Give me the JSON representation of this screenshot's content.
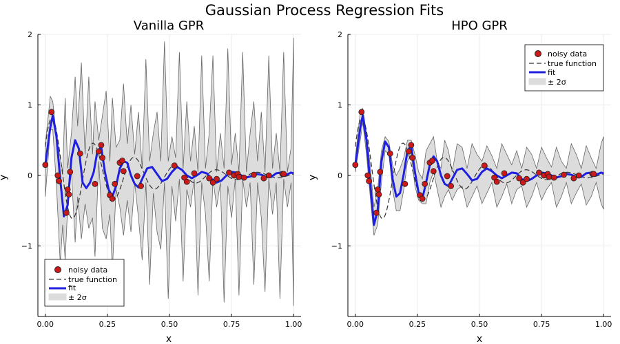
{
  "figure": {
    "title": "Gaussian Process Regression Fits"
  },
  "legend": {
    "noisy": "noisy data",
    "true": "true function",
    "fit": "fit",
    "band": "± 2σ"
  },
  "colors": {
    "data_point": "#cc1a1a",
    "data_edge": "#222222",
    "true_line": "#333333",
    "fit_line": "#1f1fe0",
    "band_fill": "#dcdcdc",
    "band_edge": "#666666"
  },
  "chart_data": [
    {
      "type": "line",
      "title": "Vanilla GPR",
      "xlabel": "x",
      "ylabel": "y",
      "xlim": [
        -0.03,
        1.03
      ],
      "ylim": [
        -2.0,
        2.0
      ],
      "xticks": [
        {
          "value": 0.0,
          "label": "0.00"
        },
        {
          "value": 0.25,
          "label": "0.25"
        },
        {
          "value": 0.5,
          "label": "0.50"
        },
        {
          "value": 0.75,
          "label": "0.75"
        },
        {
          "value": 1.0,
          "label": "1.00"
        }
      ],
      "yticks": [
        {
          "value": -1,
          "label": "−1"
        },
        {
          "value": 0,
          "label": "0"
        },
        {
          "value": 1,
          "label": "1"
        },
        {
          "value": 2,
          "label": "2"
        }
      ],
      "grid": true,
      "legend_position": "bottom-left",
      "true_function": "0.9*exp(-3.5x)*cos(38x-1.1)",
      "noisy_data": {
        "x": [
          0.0,
          0.025,
          0.05,
          0.055,
          0.085,
          0.09,
          0.095,
          0.1,
          0.14,
          0.2,
          0.215,
          0.225,
          0.23,
          0.26,
          0.27,
          0.28,
          0.3,
          0.31,
          0.315,
          0.37,
          0.385,
          0.52,
          0.56,
          0.57,
          0.6,
          0.66,
          0.675,
          0.69,
          0.74,
          0.76,
          0.775,
          0.78,
          0.8,
          0.84,
          0.88,
          0.9,
          0.955,
          0.96
        ],
        "y": [
          0.15,
          0.9,
          0.0,
          -0.08,
          -0.53,
          -0.2,
          -0.27,
          0.05,
          0.31,
          -0.12,
          0.34,
          0.43,
          0.25,
          -0.28,
          -0.33,
          -0.12,
          0.18,
          0.21,
          0.06,
          -0.01,
          -0.15,
          0.14,
          -0.03,
          -0.09,
          0.03,
          -0.04,
          -0.1,
          -0.05,
          0.04,
          0.0,
          0.02,
          -0.02,
          -0.03,
          0.01,
          -0.04,
          0.0,
          0.02,
          0.02
        ]
      },
      "fit": {
        "x": [
          0.0,
          0.02,
          0.03,
          0.045,
          0.06,
          0.075,
          0.09,
          0.105,
          0.12,
          0.135,
          0.15,
          0.165,
          0.18,
          0.195,
          0.21,
          0.225,
          0.24,
          0.255,
          0.27,
          0.285,
          0.3,
          0.315,
          0.33,
          0.345,
          0.36,
          0.375,
          0.39,
          0.41,
          0.43,
          0.45,
          0.47,
          0.49,
          0.51,
          0.53,
          0.55,
          0.57,
          0.59,
          0.61,
          0.63,
          0.65,
          0.67,
          0.69,
          0.71,
          0.73,
          0.75,
          0.77,
          0.79,
          0.81,
          0.83,
          0.85,
          0.87,
          0.89,
          0.91,
          0.93,
          0.95,
          0.97,
          0.99,
          1.0
        ],
        "y": [
          0.15,
          0.68,
          0.85,
          0.55,
          -0.05,
          -0.58,
          -0.42,
          0.25,
          0.5,
          0.38,
          -0.1,
          -0.18,
          -0.1,
          0.05,
          0.35,
          0.4,
          0.05,
          -0.2,
          -0.3,
          -0.15,
          0.1,
          0.2,
          0.18,
          0.0,
          -0.12,
          -0.17,
          -0.05,
          0.1,
          0.12,
          0.02,
          -0.08,
          -0.05,
          0.05,
          0.12,
          0.08,
          0.0,
          -0.04,
          0.0,
          0.05,
          0.03,
          -0.05,
          -0.1,
          -0.07,
          0.0,
          0.05,
          0.04,
          0.0,
          -0.03,
          -0.01,
          0.02,
          0.01,
          -0.02,
          -0.02,
          0.03,
          0.04,
          0.01,
          0.04,
          0.03
        ]
      },
      "band": {
        "x": [
          0.0,
          0.02,
          0.03,
          0.045,
          0.06,
          0.07,
          0.08,
          0.09,
          0.105,
          0.12,
          0.13,
          0.145,
          0.16,
          0.175,
          0.19,
          0.2,
          0.215,
          0.23,
          0.245,
          0.26,
          0.27,
          0.285,
          0.3,
          0.315,
          0.33,
          0.345,
          0.36,
          0.375,
          0.39,
          0.405,
          0.42,
          0.435,
          0.45,
          0.465,
          0.48,
          0.495,
          0.51,
          0.525,
          0.54,
          0.555,
          0.57,
          0.585,
          0.6,
          0.615,
          0.63,
          0.645,
          0.66,
          0.675,
          0.69,
          0.705,
          0.72,
          0.735,
          0.75,
          0.765,
          0.78,
          0.795,
          0.81,
          0.825,
          0.84,
          0.855,
          0.87,
          0.885,
          0.9,
          0.915,
          0.93,
          0.945,
          0.96,
          0.975,
          0.99,
          1.0
        ],
        "upper": [
          0.45,
          1.12,
          1.05,
          0.55,
          0.25,
          0.05,
          1.1,
          0.1,
          0.6,
          1.4,
          0.7,
          1.6,
          0.3,
          1.4,
          0.3,
          1.05,
          0.5,
          0.85,
          1.2,
          0.2,
          1.1,
          0.4,
          0.5,
          1.3,
          0.45,
          1.0,
          0.3,
          0.9,
          0.1,
          1.65,
          0.2,
          0.6,
          0.9,
          0.2,
          1.9,
          0.2,
          0.55,
          0.25,
          1.75,
          0.1,
          1.05,
          0.2,
          0.7,
          0.05,
          1.7,
          0.1,
          0.6,
          1.7,
          0.05,
          0.6,
          0.1,
          1.8,
          0.15,
          0.6,
          0.05,
          1.75,
          0.05,
          0.6,
          1.05,
          0.2,
          0.9,
          0.05,
          1.7,
          0.1,
          0.6,
          0.05,
          1.75,
          0.05,
          0.4,
          1.95
        ],
        "lower": [
          -0.3,
          0.65,
          0.65,
          -0.15,
          -1.25,
          -0.7,
          -1.2,
          -0.45,
          0.05,
          -0.95,
          -0.3,
          -0.9,
          -0.4,
          -0.75,
          -0.6,
          -1.15,
          0.2,
          -0.75,
          -0.9,
          -0.55,
          -1.35,
          -0.2,
          -0.45,
          -0.85,
          -0.35,
          -0.8,
          -0.1,
          -0.6,
          -1.2,
          -0.1,
          -1.55,
          -0.25,
          -0.8,
          -1.05,
          -0.1,
          -1.75,
          -0.15,
          -0.65,
          -0.05,
          -1.5,
          -0.2,
          -0.45,
          -0.05,
          -1.7,
          -0.1,
          -0.55,
          -1.5,
          -0.05,
          -0.45,
          -0.1,
          -1.8,
          -0.15,
          -0.6,
          -0.05,
          -1.7,
          -0.05,
          -0.45,
          -0.1,
          -1.55,
          -0.1,
          -0.6,
          -1.65,
          -0.05,
          -0.55,
          -0.1,
          -1.75,
          -0.05,
          -0.45,
          -0.1,
          -1.85
        ]
      }
    },
    {
      "type": "line",
      "title": "HPO GPR",
      "xlabel": "x",
      "ylabel": "y",
      "xlim": [
        -0.03,
        1.03
      ],
      "ylim": [
        -2.0,
        2.0
      ],
      "xticks": [
        {
          "value": 0.0,
          "label": "0.00"
        },
        {
          "value": 0.25,
          "label": "0.25"
        },
        {
          "value": 0.5,
          "label": "0.50"
        },
        {
          "value": 0.75,
          "label": "0.75"
        },
        {
          "value": 1.0,
          "label": "1.00"
        }
      ],
      "yticks": [
        {
          "value": -1,
          "label": "−1"
        },
        {
          "value": 0,
          "label": "0"
        },
        {
          "value": 1,
          "label": "1"
        },
        {
          "value": 2,
          "label": "2"
        }
      ],
      "grid": true,
      "legend_position": "top-right",
      "true_function": "0.9*exp(-3.5x)*cos(38x-1.1)",
      "noisy_data": {
        "x": [
          0.0,
          0.025,
          0.05,
          0.055,
          0.085,
          0.09,
          0.095,
          0.1,
          0.14,
          0.2,
          0.215,
          0.225,
          0.23,
          0.26,
          0.27,
          0.28,
          0.3,
          0.31,
          0.315,
          0.37,
          0.385,
          0.52,
          0.56,
          0.57,
          0.6,
          0.66,
          0.675,
          0.69,
          0.74,
          0.76,
          0.775,
          0.78,
          0.8,
          0.84,
          0.88,
          0.9,
          0.955,
          0.96
        ],
        "y": [
          0.15,
          0.9,
          0.0,
          -0.08,
          -0.53,
          -0.2,
          -0.27,
          0.05,
          0.31,
          -0.12,
          0.34,
          0.43,
          0.25,
          -0.28,
          -0.33,
          -0.12,
          0.18,
          0.21,
          0.06,
          -0.01,
          -0.15,
          0.14,
          -0.03,
          -0.09,
          0.03,
          -0.04,
          -0.1,
          -0.05,
          0.04,
          0.0,
          0.02,
          -0.02,
          -0.03,
          0.01,
          -0.04,
          0.0,
          0.02,
          0.02
        ]
      },
      "fit": {
        "x": [
          0.0,
          0.02,
          0.03,
          0.045,
          0.06,
          0.075,
          0.09,
          0.105,
          0.12,
          0.135,
          0.15,
          0.165,
          0.18,
          0.195,
          0.21,
          0.225,
          0.24,
          0.255,
          0.27,
          0.285,
          0.3,
          0.315,
          0.33,
          0.345,
          0.36,
          0.375,
          0.39,
          0.41,
          0.43,
          0.45,
          0.47,
          0.49,
          0.51,
          0.53,
          0.55,
          0.57,
          0.59,
          0.61,
          0.63,
          0.65,
          0.67,
          0.69,
          0.71,
          0.73,
          0.75,
          0.77,
          0.79,
          0.81,
          0.83,
          0.85,
          0.87,
          0.89,
          0.91,
          0.93,
          0.95,
          0.97,
          0.99,
          1.0
        ],
        "y": [
          0.15,
          0.68,
          0.85,
          0.5,
          -0.1,
          -0.7,
          -0.5,
          0.2,
          0.48,
          0.4,
          -0.05,
          -0.3,
          -0.25,
          0.02,
          0.35,
          0.42,
          0.05,
          -0.25,
          -0.33,
          -0.1,
          0.15,
          0.27,
          0.2,
          0.0,
          -0.12,
          -0.15,
          -0.05,
          0.08,
          0.1,
          0.02,
          -0.07,
          -0.05,
          0.05,
          0.1,
          0.06,
          0.0,
          -0.04,
          0.0,
          0.04,
          0.03,
          -0.05,
          -0.08,
          -0.05,
          0.0,
          0.04,
          0.03,
          0.0,
          -0.03,
          -0.01,
          0.02,
          0.01,
          -0.02,
          -0.02,
          0.03,
          0.04,
          0.01,
          0.04,
          0.03
        ]
      },
      "band": {
        "x": [
          0.0,
          0.02,
          0.03,
          0.045,
          0.06,
          0.075,
          0.09,
          0.105,
          0.12,
          0.135,
          0.15,
          0.165,
          0.18,
          0.195,
          0.21,
          0.225,
          0.24,
          0.255,
          0.27,
          0.285,
          0.3,
          0.315,
          0.33,
          0.345,
          0.36,
          0.375,
          0.39,
          0.41,
          0.43,
          0.45,
          0.47,
          0.49,
          0.51,
          0.53,
          0.55,
          0.57,
          0.59,
          0.61,
          0.63,
          0.65,
          0.67,
          0.69,
          0.71,
          0.73,
          0.75,
          0.77,
          0.79,
          0.81,
          0.83,
          0.85,
          0.87,
          0.89,
          0.91,
          0.93,
          0.95,
          0.97,
          0.99,
          1.0
        ],
        "upper": [
          0.25,
          0.9,
          0.95,
          0.6,
          0.15,
          -0.45,
          -0.2,
          0.35,
          0.55,
          0.48,
          0.15,
          0.0,
          0.1,
          0.25,
          0.5,
          0.5,
          0.3,
          0.05,
          -0.05,
          0.35,
          0.45,
          0.55,
          0.2,
          0.1,
          0.5,
          0.35,
          0.05,
          0.45,
          0.4,
          0.1,
          0.45,
          0.3,
          0.2,
          0.42,
          0.28,
          0.1,
          0.45,
          0.3,
          0.15,
          0.35,
          0.1,
          0.4,
          0.3,
          0.1,
          0.4,
          0.25,
          0.12,
          0.4,
          0.2,
          0.1,
          0.45,
          0.3,
          0.1,
          0.42,
          0.25,
          0.1,
          0.45,
          0.55
        ],
        "lower": [
          0.05,
          0.5,
          0.75,
          0.3,
          -0.3,
          -0.85,
          -0.7,
          -0.1,
          0.35,
          0.3,
          -0.2,
          -0.5,
          -0.5,
          -0.2,
          0.2,
          0.3,
          -0.15,
          -0.35,
          -0.4,
          -0.4,
          -0.1,
          0.05,
          -0.2,
          -0.45,
          -0.3,
          -0.2,
          -0.35,
          -0.2,
          -0.15,
          -0.45,
          -0.3,
          -0.15,
          -0.4,
          -0.25,
          -0.1,
          -0.45,
          -0.3,
          -0.12,
          -0.4,
          -0.2,
          -0.15,
          -0.45,
          -0.3,
          -0.1,
          -0.35,
          -0.2,
          -0.1,
          -0.45,
          -0.3,
          -0.1,
          -0.4,
          -0.25,
          -0.12,
          -0.42,
          -0.3,
          -0.1,
          -0.4,
          -0.48
        ]
      }
    }
  ]
}
